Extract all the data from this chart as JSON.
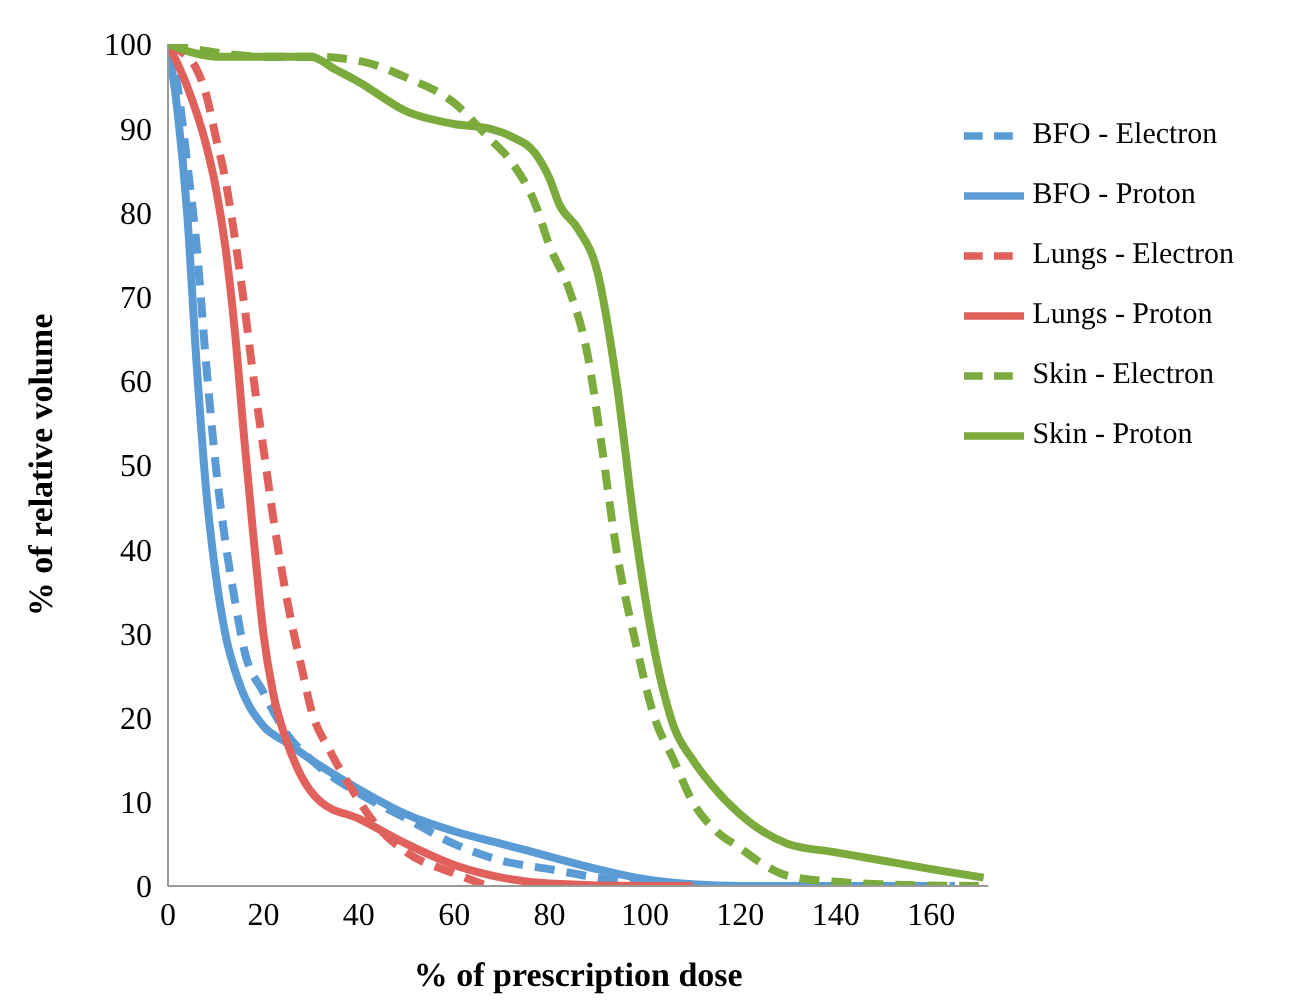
{
  "chart_data": {
    "type": "line",
    "xlabel": "% of prescription dose",
    "ylabel": "% of relative volume",
    "xlim": [
      0,
      172
    ],
    "xticks": [
      0,
      20,
      40,
      60,
      80,
      100,
      120,
      140,
      160
    ],
    "ylim": [
      0,
      100
    ],
    "yticks": [
      0,
      10,
      20,
      30,
      40,
      50,
      60,
      70,
      80,
      90,
      100
    ],
    "grid": false,
    "legend": "top right",
    "marker": "none",
    "series": [
      {
        "name": "BFO - Proton",
        "color": "#5b9bd5",
        "line_style": "solid",
        "x": [
          0,
          2,
          4,
          6,
          8,
          10,
          12,
          15,
          20,
          25,
          30,
          40,
          50,
          60,
          70,
          80,
          90,
          100,
          110,
          120,
          160
        ],
        "values": [
          100,
          92,
          80,
          62,
          47,
          37,
          30,
          24,
          19,
          17,
          15,
          11.5,
          8.5,
          6.5,
          5,
          3.5,
          2,
          0.8,
          0.2,
          0,
          0
        ]
      },
      {
        "name": "BFO - Electron",
        "color": "#5b9bd5",
        "line_style": "dashed",
        "x": [
          0,
          2,
          4,
          6,
          8,
          10,
          12,
          14,
          16,
          20,
          25,
          30,
          40,
          50,
          60,
          70,
          80,
          90,
          100,
          110,
          165
        ],
        "values": [
          100,
          95,
          86,
          76,
          62,
          50,
          41,
          34,
          28,
          23,
          18,
          15,
          11,
          8,
          5,
          3,
          2,
          1,
          0.3,
          0,
          0
        ]
      },
      {
        "name": "Lungs - Proton",
        "color": "#e0615b",
        "line_style": "solid",
        "x": [
          0,
          4,
          8,
          10,
          12,
          14,
          16,
          18,
          20,
          22,
          25,
          28,
          32,
          40,
          50,
          60,
          70,
          80,
          100,
          110
        ],
        "values": [
          100,
          95,
          88,
          83,
          76,
          66,
          53,
          41,
          30,
          23,
          17,
          13,
          10,
          8,
          5,
          2.5,
          1,
          0.3,
          0,
          0
        ]
      },
      {
        "name": "Lungs - Electron",
        "color": "#e0615b",
        "line_style": "dashed",
        "x": [
          0,
          3,
          6,
          8,
          10,
          12,
          14,
          16,
          18,
          20,
          22,
          24,
          26,
          28,
          30,
          34,
          38,
          44,
          50,
          60,
          67
        ],
        "values": [
          100,
          99,
          97,
          94,
          89,
          84,
          77,
          69,
          60,
          52,
          44,
          37,
          31,
          26,
          21,
          16,
          12,
          7,
          4,
          1.5,
          0
        ]
      },
      {
        "name": "Skin - Proton",
        "color": "#7aab3c",
        "line_style": "solid",
        "x": [
          0,
          5,
          10,
          20,
          30,
          35,
          40,
          50,
          60,
          67,
          72,
          77,
          80,
          82,
          86,
          90,
          94,
          98,
          102,
          106,
          110,
          114,
          120,
          130,
          140,
          150,
          160,
          171
        ],
        "values": [
          100,
          99,
          98.5,
          98.5,
          98.5,
          97,
          95.5,
          92,
          90.5,
          90,
          89,
          87,
          84,
          81,
          78,
          73,
          60,
          42,
          28,
          19,
          15,
          12,
          8.5,
          5,
          4,
          3,
          2,
          1
        ]
      },
      {
        "name": "Skin - Electron",
        "color": "#7aab3c",
        "line_style": "dashed",
        "x": [
          0,
          10,
          20,
          30,
          40,
          50,
          60,
          67,
          72,
          77,
          80,
          84,
          88,
          91,
          94,
          98,
          102,
          106,
          110,
          115,
          120,
          125,
          130,
          140,
          150,
          170
        ],
        "values": [
          100,
          99,
          98.5,
          98.5,
          98,
          96,
          93,
          89,
          86,
          81,
          76,
          71,
          63,
          52,
          40,
          29,
          20,
          15,
          10,
          6.5,
          4.5,
          2.5,
          1.2,
          0.5,
          0.2,
          0
        ]
      }
    ]
  }
}
